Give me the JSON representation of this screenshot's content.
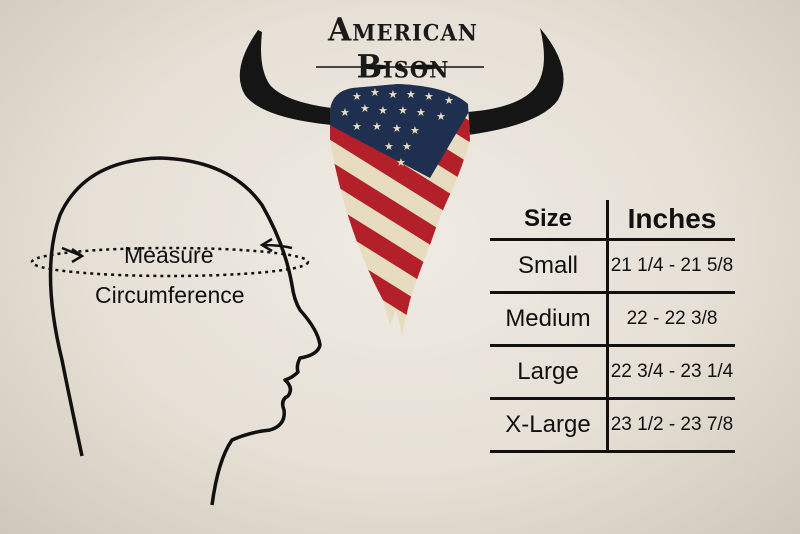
{
  "brand": {
    "title": "American Bison"
  },
  "diagram": {
    "measure_label": "Measure",
    "circumference_label": "Circumference"
  },
  "size_chart": {
    "headers": [
      "Size",
      "Inches"
    ],
    "rows": [
      {
        "size": "Small",
        "inches": "21 1/4 - 21 5/8"
      },
      {
        "size": "Medium",
        "inches": "22 - 22 3/8"
      },
      {
        "size": "Large",
        "inches": "22 3/4 - 23 1/4"
      },
      {
        "size": "X-Large",
        "inches": "23 1/2 - 23 7/8"
      }
    ]
  },
  "colors": {
    "flag_red": "#b3202a",
    "flag_blue": "#1f2f4f",
    "flag_cream": "#e8dcc0",
    "ink": "#111111"
  }
}
